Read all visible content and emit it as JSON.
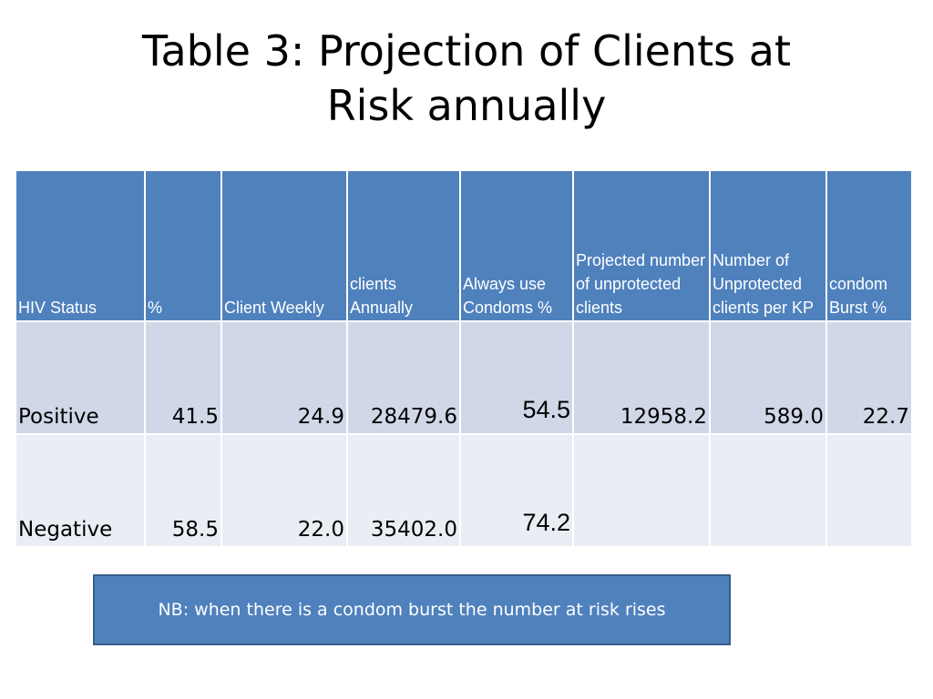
{
  "slide": {
    "title_line1": "Table 3: Projection of Clients at",
    "title_line2": "Risk annually"
  },
  "table": {
    "headers": [
      "HIV Status",
      "%",
      "Client Weekly",
      "clients Annually",
      "Always use Condoms %",
      "Projected number of unprotected clients",
      "Number of Unprotected clients per KP",
      "condom Burst %"
    ],
    "rows": [
      [
        "Positive",
        "41.5",
        "24.9",
        "28479.6",
        "54.5",
        "12958.2",
        "589.0",
        "22.7"
      ],
      [
        "Negative",
        "58.5",
        "22.0",
        "35402.0",
        "74.2",
        "",
        "",
        ""
      ]
    ]
  },
  "note": {
    "text": "NB: when there is a condom burst the number at risk rises"
  },
  "colors": {
    "header_bg": "#4f81bd",
    "row_odd_bg": "#d0d8e8",
    "row_even_bg": "#e9edf4",
    "note_bg": "#4f81bd",
    "note_border": "#385d8a"
  }
}
